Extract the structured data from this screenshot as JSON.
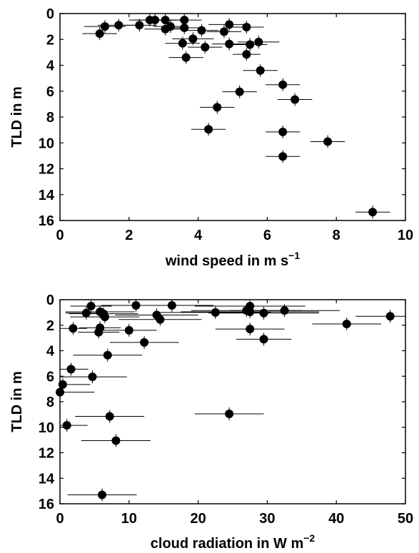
{
  "chart_data": [
    {
      "type": "scatter",
      "xlabel": "wind speed in m s",
      "xlabel_sup": "−1",
      "ylabel": "TLD in m",
      "xlim": [
        0,
        10
      ],
      "ylim": [
        0,
        16
      ],
      "y_reversed": true,
      "xticks": [
        0,
        2,
        4,
        6,
        8,
        10
      ],
      "yticks": [
        0,
        2,
        4,
        6,
        8,
        10,
        12,
        14,
        16
      ],
      "grid": false,
      "points": [
        {
          "x": 1.3,
          "y": 1.0,
          "xerr": 0.6
        },
        {
          "x": 1.7,
          "y": 0.9,
          "xerr": 0.6
        },
        {
          "x": 1.15,
          "y": 1.55,
          "xerr": 0.5
        },
        {
          "x": 2.3,
          "y": 0.9,
          "xerr": 0.5
        },
        {
          "x": 2.6,
          "y": 0.5,
          "xerr": 0.6
        },
        {
          "x": 2.75,
          "y": 0.5,
          "xerr": 0.6
        },
        {
          "x": 3.05,
          "y": 0.5,
          "xerr": 0.5
        },
        {
          "x": 3.6,
          "y": 0.5,
          "xerr": 0.5
        },
        {
          "x": 3.05,
          "y": 1.2,
          "xerr": 0.6
        },
        {
          "x": 3.2,
          "y": 1.0,
          "xerr": 0.5
        },
        {
          "x": 3.6,
          "y": 1.1,
          "xerr": 0.5
        },
        {
          "x": 4.1,
          "y": 1.3,
          "xerr": 0.5
        },
        {
          "x": 4.9,
          "y": 0.85,
          "xerr": 0.6
        },
        {
          "x": 4.75,
          "y": 1.4,
          "xerr": 0.5
        },
        {
          "x": 5.4,
          "y": 1.05,
          "xerr": 0.5
        },
        {
          "x": 3.85,
          "y": 1.95,
          "xerr": 0.6
        },
        {
          "x": 3.55,
          "y": 2.3,
          "xerr": 0.5
        },
        {
          "x": 4.2,
          "y": 2.6,
          "xerr": 0.5
        },
        {
          "x": 4.9,
          "y": 2.35,
          "xerr": 0.5
        },
        {
          "x": 5.5,
          "y": 2.4,
          "xerr": 0.5
        },
        {
          "x": 5.75,
          "y": 2.2,
          "xerr": 0.6
        },
        {
          "x": 5.4,
          "y": 3.15,
          "xerr": 0.4
        },
        {
          "x": 3.65,
          "y": 3.4,
          "xerr": 0.5
        },
        {
          "x": 5.8,
          "y": 4.4,
          "xerr": 0.5
        },
        {
          "x": 6.45,
          "y": 5.5,
          "xerr": 0.5
        },
        {
          "x": 5.2,
          "y": 6.05,
          "xerr": 0.5
        },
        {
          "x": 6.8,
          "y": 6.65,
          "xerr": 0.5
        },
        {
          "x": 4.55,
          "y": 7.25,
          "xerr": 0.5
        },
        {
          "x": 4.3,
          "y": 8.95,
          "xerr": 0.5
        },
        {
          "x": 6.45,
          "y": 9.15,
          "xerr": 0.5
        },
        {
          "x": 7.75,
          "y": 9.9,
          "xerr": 0.5
        },
        {
          "x": 6.45,
          "y": 11.05,
          "xerr": 0.5
        },
        {
          "x": 9.05,
          "y": 15.35,
          "xerr": 0.5
        }
      ]
    },
    {
      "type": "scatter",
      "xlabel": "cloud radiation in W m",
      "xlabel_sup": "−2",
      "ylabel": "TLD in m",
      "xlim": [
        0,
        50
      ],
      "ylim": [
        0,
        16
      ],
      "y_reversed": true,
      "xticks": [
        0,
        10,
        20,
        30,
        40,
        50
      ],
      "yticks": [
        0,
        2,
        4,
        6,
        8,
        10,
        12,
        14,
        16
      ],
      "grid": false,
      "points": [
        {
          "x": 4.5,
          "y": 0.5,
          "xerr": 3
        },
        {
          "x": 3.8,
          "y": 1.05,
          "xerr": 3
        },
        {
          "x": 5.8,
          "y": 0.95,
          "xerr": 5
        },
        {
          "x": 6.3,
          "y": 1.1,
          "xerr": 5
        },
        {
          "x": 6.5,
          "y": 1.35,
          "xerr": 5
        },
        {
          "x": 11.0,
          "y": 0.45,
          "xerr": 5
        },
        {
          "x": 14.0,
          "y": 1.2,
          "xerr": 6
        },
        {
          "x": 14.5,
          "y": 1.55,
          "xerr": 6
        },
        {
          "x": 16.2,
          "y": 0.45,
          "xerr": 6
        },
        {
          "x": 22.5,
          "y": 1.0,
          "xerr": 8
        },
        {
          "x": 27.0,
          "y": 0.85,
          "xerr": 8
        },
        {
          "x": 27.5,
          "y": 0.5,
          "xerr": 8
        },
        {
          "x": 27.5,
          "y": 0.95,
          "xerr": 10
        },
        {
          "x": 29.5,
          "y": 1.05,
          "xerr": 8
        },
        {
          "x": 32.5,
          "y": 0.85,
          "xerr": 8
        },
        {
          "x": 41.5,
          "y": 1.9,
          "xerr": 5
        },
        {
          "x": 47.8,
          "y": 1.3,
          "xerr": 5
        },
        {
          "x": 1.9,
          "y": 2.25,
          "xerr": 2
        },
        {
          "x": 5.8,
          "y": 2.2,
          "xerr": 3
        },
        {
          "x": 5.6,
          "y": 2.55,
          "xerr": 3
        },
        {
          "x": 10.0,
          "y": 2.4,
          "xerr": 4
        },
        {
          "x": 12.2,
          "y": 3.35,
          "xerr": 5
        },
        {
          "x": 27.5,
          "y": 2.3,
          "xerr": 5
        },
        {
          "x": 29.5,
          "y": 3.1,
          "xerr": 4
        },
        {
          "x": 6.9,
          "y": 4.35,
          "xerr": 5
        },
        {
          "x": 1.6,
          "y": 5.45,
          "xerr": 2.5
        },
        {
          "x": 4.7,
          "y": 6.05,
          "xerr": 5
        },
        {
          "x": 0.4,
          "y": 6.65,
          "xerr": 4
        },
        {
          "x": 0.0,
          "y": 7.25,
          "xerr": 5
        },
        {
          "x": 7.2,
          "y": 9.15,
          "xerr": 5
        },
        {
          "x": 24.5,
          "y": 8.95,
          "xerr": 5
        },
        {
          "x": 1.0,
          "y": 9.85,
          "xerr": 3
        },
        {
          "x": 8.1,
          "y": 11.05,
          "xerr": 5
        },
        {
          "x": 6.1,
          "y": 15.3,
          "xerr": 5
        }
      ]
    }
  ]
}
